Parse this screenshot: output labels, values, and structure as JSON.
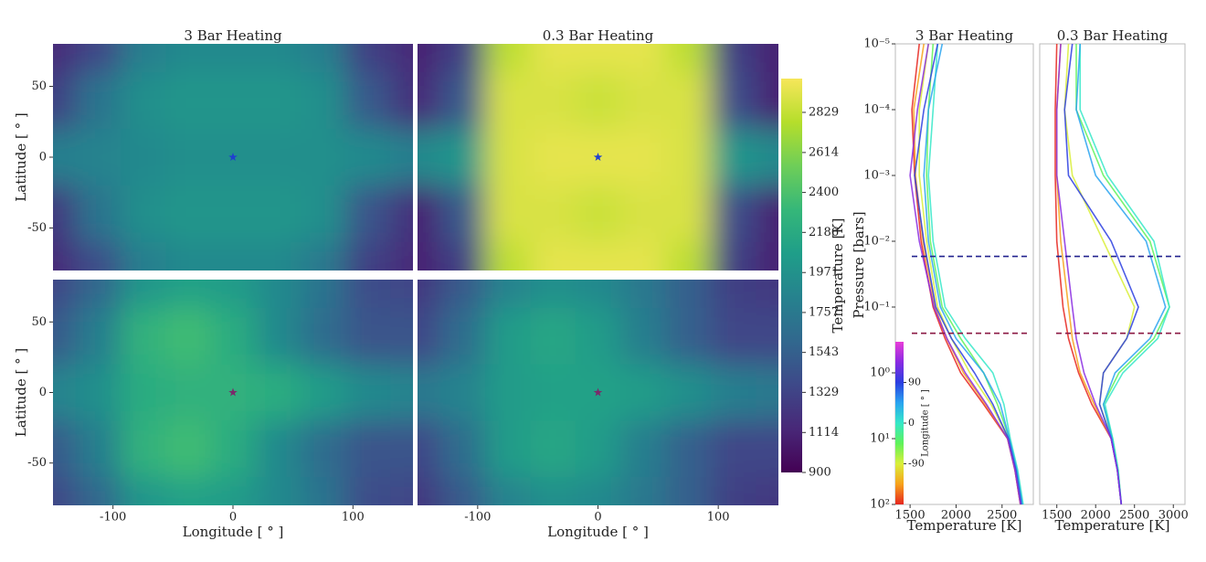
{
  "chart_data": [
    {
      "type": "heatmap",
      "title": "3 Bar Heating",
      "x": [
        -150,
        -112.5,
        -75,
        -37.5,
        0,
        37.5,
        75,
        112.5,
        150
      ],
      "y": [
        80,
        40,
        0,
        -40,
        -80
      ],
      "values": [
        [
          1150,
          1350,
          1800,
          1900,
          1900,
          1900,
          1800,
          1300,
          1150
        ],
        [
          1300,
          1700,
          1950,
          2000,
          2000,
          2000,
          1950,
          1500,
          1200
        ],
        [
          1800,
          1850,
          1900,
          1950,
          1950,
          1950,
          1950,
          1900,
          1800
        ],
        [
          1250,
          1700,
          1950,
          2000,
          2000,
          2000,
          1950,
          1450,
          1200
        ],
        [
          1150,
          1400,
          1800,
          1900,
          1900,
          1900,
          1750,
          1300,
          1150
        ]
      ],
      "xlim": [
        -150,
        150
      ],
      "ylim": [
        -80,
        80
      ],
      "yticks": [
        -50,
        0,
        50
      ],
      "ylabel": "Latitude [ ° ]",
      "marker": {
        "x": 0,
        "y": 0,
        "color": "#1f3fd0"
      }
    },
    {
      "type": "heatmap",
      "title": "0.3 Bar Heating",
      "x": [
        -150,
        -112.5,
        -75,
        -37.5,
        0,
        37.5,
        75,
        112.5,
        150
      ],
      "y": [
        80,
        40,
        0,
        -40,
        -80
      ],
      "values": [
        [
          1100,
          1300,
          2800,
          2950,
          2950,
          2950,
          2800,
          1300,
          1100
        ],
        [
          1150,
          1500,
          2900,
          2900,
          2850,
          2900,
          2900,
          1400,
          1100
        ],
        [
          1900,
          2000,
          2900,
          2950,
          2950,
          2950,
          2900,
          2000,
          1900
        ],
        [
          1100,
          1500,
          2900,
          2900,
          2850,
          2900,
          2900,
          1400,
          1100
        ],
        [
          1100,
          1300,
          2800,
          2950,
          2950,
          2950,
          2800,
          1300,
          1100
        ]
      ],
      "xlim": [
        -150,
        150
      ],
      "ylim": [
        -80,
        80
      ],
      "marker": {
        "x": 0,
        "y": 0,
        "color": "#1f3fd0"
      }
    },
    {
      "type": "heatmap",
      "x": [
        -150,
        -112.5,
        -75,
        -37.5,
        0,
        37.5,
        75,
        112.5,
        150
      ],
      "y": [
        80,
        40,
        0,
        -40,
        -80
      ],
      "values": [
        [
          1350,
          1600,
          2000,
          2100,
          2050,
          1900,
          1700,
          1400,
          1350
        ],
        [
          1500,
          1800,
          2250,
          2350,
          2200,
          1900,
          1650,
          1450,
          1450
        ],
        [
          1850,
          1950,
          2200,
          2250,
          2250,
          2200,
          2050,
          1900,
          1850
        ],
        [
          1500,
          1800,
          2250,
          2350,
          2200,
          1900,
          1650,
          1450,
          1450
        ],
        [
          1350,
          1600,
          2000,
          2100,
          2050,
          1900,
          1700,
          1400,
          1350
        ]
      ],
      "xlim": [
        -150,
        150
      ],
      "ylim": [
        -80,
        80
      ],
      "xticks": [
        -100,
        0,
        100
      ],
      "yticks": [
        -50,
        0,
        50
      ],
      "xlabel": "Longitude [ ° ]",
      "ylabel": "Latitude [ ° ]",
      "marker": {
        "x": 0,
        "y": 0,
        "color": "#7a2a6a"
      }
    },
    {
      "type": "heatmap",
      "x": [
        -150,
        -112.5,
        -75,
        -37.5,
        0,
        37.5,
        75,
        112.5,
        150
      ],
      "y": [
        80,
        40,
        0,
        -40,
        -80
      ],
      "values": [
        [
          1250,
          1500,
          1850,
          1950,
          1900,
          1750,
          1550,
          1300,
          1250
        ],
        [
          1350,
          1650,
          2050,
          2150,
          2050,
          1800,
          1550,
          1350,
          1350
        ],
        [
          1750,
          1850,
          2050,
          2100,
          2100,
          2050,
          1950,
          1800,
          1750
        ],
        [
          1350,
          1650,
          2050,
          2150,
          2050,
          1800,
          1550,
          1350,
          1350
        ],
        [
          1250,
          1500,
          1850,
          1950,
          1900,
          1750,
          1550,
          1300,
          1250
        ]
      ],
      "xlim": [
        -150,
        150
      ],
      "ylim": [
        -80,
        80
      ],
      "xticks": [
        -100,
        0,
        100
      ],
      "xlabel": "Longitude [ ° ]",
      "marker": {
        "x": 0,
        "y": 0,
        "color": "#7a2a6a"
      }
    },
    {
      "type": "profile",
      "title": "3 Bar Heating",
      "pressures": [
        1e-05,
        0.0001,
        0.001,
        0.01,
        0.1,
        0.3,
        1,
        3,
        10,
        30,
        100
      ],
      "profiles": [
        {
          "longitude": -180,
          "values": [
            1600,
            1520,
            1550,
            1620,
            1750,
            1880,
            2050,
            2300,
            2560,
            2640,
            2700
          ]
        },
        {
          "longitude": -135,
          "values": [
            1650,
            1540,
            1560,
            1640,
            1770,
            1900,
            2080,
            2320,
            2560,
            2640,
            2700
          ]
        },
        {
          "longitude": -90,
          "values": [
            1700,
            1600,
            1600,
            1680,
            1800,
            1950,
            2150,
            2380,
            2570,
            2650,
            2710
          ]
        },
        {
          "longitude": -45,
          "values": [
            1750,
            1700,
            1680,
            1720,
            1850,
            2050,
            2300,
            2450,
            2580,
            2660,
            2720
          ]
        },
        {
          "longitude": 0,
          "values": [
            1800,
            1750,
            1700,
            1750,
            1880,
            2100,
            2400,
            2520,
            2590,
            2670,
            2730
          ]
        },
        {
          "longitude": 45,
          "values": [
            1850,
            1700,
            1650,
            1700,
            1830,
            2000,
            2300,
            2480,
            2580,
            2660,
            2720
          ]
        },
        {
          "longitude": 90,
          "values": [
            1800,
            1650,
            1550,
            1650,
            1780,
            1950,
            2200,
            2400,
            2570,
            2650,
            2710
          ]
        },
        {
          "longitude": 135,
          "values": [
            1700,
            1580,
            1500,
            1600,
            1760,
            1900,
            2100,
            2330,
            2560,
            2640,
            2700
          ]
        }
      ],
      "xlim": [
        1340,
        2840
      ],
      "xticks": [
        1500,
        2000,
        2500
      ],
      "xlabel": "Temperature [K]",
      "log_y": true,
      "ylim": [
        1e-05,
        100
      ],
      "yticks": [
        {
          "value": 1e-05,
          "label": "10⁻⁵"
        },
        {
          "value": 0.0001,
          "label": "10⁻⁴"
        },
        {
          "value": 0.001,
          "label": "10⁻³"
        },
        {
          "value": 0.01,
          "label": "10⁻²"
        },
        {
          "value": 0.1,
          "label": "10⁻¹"
        },
        {
          "value": 1,
          "label": "10⁰"
        },
        {
          "value": 10,
          "label": "10¹"
        },
        {
          "value": 100,
          "label": "10²"
        }
      ],
      "ylabel": "Pressure [bars]",
      "hlines": [
        {
          "value": 0.017,
          "color": "#22228f"
        },
        {
          "value": 0.25,
          "color": "#8b1a45"
        }
      ]
    },
    {
      "type": "profile",
      "title": "0.3 Bar Heating",
      "pressures": [
        1e-05,
        0.0001,
        0.001,
        0.01,
        0.1,
        0.3,
        1,
        3,
        10,
        30,
        100
      ],
      "profiles": [
        {
          "longitude": -180,
          "values": [
            1500,
            1480,
            1480,
            1500,
            1580,
            1650,
            1780,
            1950,
            2200,
            2280,
            2330
          ]
        },
        {
          "longitude": -135,
          "values": [
            1550,
            1500,
            1500,
            1550,
            1650,
            1700,
            1800,
            1980,
            2200,
            2280,
            2330
          ]
        },
        {
          "longitude": -90,
          "values": [
            1650,
            1600,
            1700,
            2100,
            2500,
            2400,
            2100,
            2050,
            2210,
            2280,
            2330
          ]
        },
        {
          "longitude": -45,
          "values": [
            1750,
            1750,
            2100,
            2700,
            2950,
            2750,
            2300,
            2100,
            2220,
            2290,
            2330
          ]
        },
        {
          "longitude": 0,
          "values": [
            1800,
            1800,
            2150,
            2750,
            2950,
            2800,
            2350,
            2120,
            2220,
            2290,
            2330
          ]
        },
        {
          "longitude": 45,
          "values": [
            1800,
            1750,
            2000,
            2650,
            2900,
            2700,
            2250,
            2100,
            2210,
            2280,
            2330
          ]
        },
        {
          "longitude": 90,
          "values": [
            1700,
            1600,
            1650,
            2200,
            2550,
            2400,
            2100,
            2050,
            2200,
            2280,
            2330
          ]
        },
        {
          "longitude": 135,
          "values": [
            1550,
            1500,
            1500,
            1600,
            1700,
            1750,
            1850,
            2000,
            2200,
            2280,
            2330
          ]
        }
      ],
      "xlim": [
        1280,
        3150
      ],
      "xticks": [
        1500,
        2000,
        2500,
        3000
      ],
      "xlabel": "Temperature [K]",
      "log_y": true,
      "ylim": [
        1e-05,
        100
      ],
      "hlines": [
        {
          "value": 0.017,
          "color": "#22228f"
        },
        {
          "value": 0.25,
          "color": "#8b1a45"
        }
      ]
    }
  ],
  "colorbar": {
    "label": "Temperature [K]",
    "clim": [
      900,
      3010
    ],
    "ticks": [
      900,
      1114,
      1329,
      1543,
      1757,
      1971,
      2186,
      2400,
      2614,
      2829
    ],
    "colors": [
      "#440154",
      "#482878",
      "#3e4989",
      "#31688e",
      "#26828e",
      "#1f9e89",
      "#35b779",
      "#6ece58",
      "#b5de2b",
      "#f6e65a"
    ]
  },
  "longitude_colorbar": {
    "label": "Longitude [ ° ]",
    "clim": [
      -180,
      180
    ],
    "ticks": [
      -90,
      0,
      90
    ],
    "colors": [
      "#e6261f",
      "#f7a21b",
      "#d9ef3a",
      "#5ff25a",
      "#35e8c8",
      "#29a3f0",
      "#2b3ee0",
      "#8a2be2",
      "#e83ed8"
    ]
  }
}
